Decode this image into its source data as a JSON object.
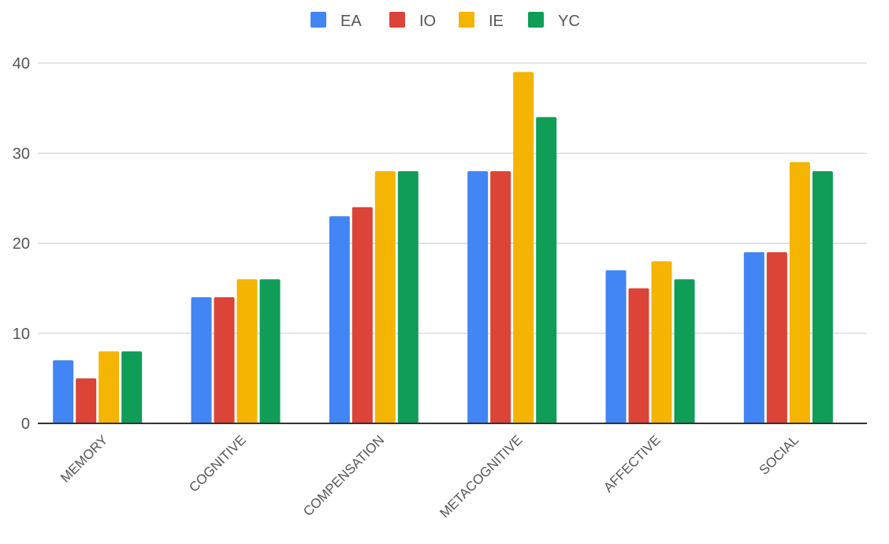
{
  "chart_data": {
    "type": "bar",
    "title": "",
    "xlabel": "",
    "ylabel": "",
    "categories": [
      "MEMORY",
      "COGNITIVE",
      "COMPENSATION",
      "METACOGNITIVE",
      "AFFECTIVE",
      "SOCIAL"
    ],
    "series": [
      {
        "name": "EA",
        "color": "#4285F4",
        "values": [
          7,
          14,
          23,
          28,
          17,
          19
        ]
      },
      {
        "name": "IO",
        "color": "#DB4437",
        "values": [
          5,
          14,
          24,
          28,
          15,
          19
        ]
      },
      {
        "name": "IE",
        "color": "#F4B400",
        "values": [
          8,
          16,
          28,
          39,
          18,
          29
        ]
      },
      {
        "name": "YC",
        "color": "#0F9D58",
        "values": [
          8,
          16,
          28,
          34,
          16,
          28
        ]
      }
    ],
    "ylim": [
      0,
      40
    ],
    "yticks": [
      0,
      10,
      20,
      30,
      40
    ],
    "grid": true,
    "legend_position": "top"
  }
}
